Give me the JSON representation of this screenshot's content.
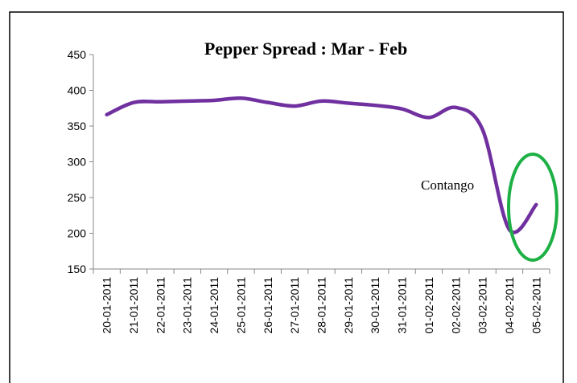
{
  "chart_data": {
    "type": "line",
    "title": "Pepper Spread : Mar - Feb",
    "categories": [
      "20-01-2011",
      "21-01-2011",
      "22-01-2011",
      "23-01-2011",
      "24-01-2011",
      "25-01-2011",
      "26-01-2011",
      "27-01-2011",
      "28-01-2011",
      "29-01-2011",
      "30-01-2011",
      "31-01-2011",
      "01-02-2011",
      "02-02-2011",
      "03-02-2011",
      "04-02-2011",
      "05-02-2011"
    ],
    "values": [
      366,
      383,
      384,
      385,
      386,
      389,
      383,
      378,
      385,
      382,
      379,
      374,
      362,
      376,
      345,
      205,
      240
    ],
    "color": "#7030a0",
    "ylim": [
      150,
      450
    ],
    "yticks": [
      150,
      200,
      250,
      300,
      350,
      400,
      450
    ],
    "annotation": "Contango"
  }
}
